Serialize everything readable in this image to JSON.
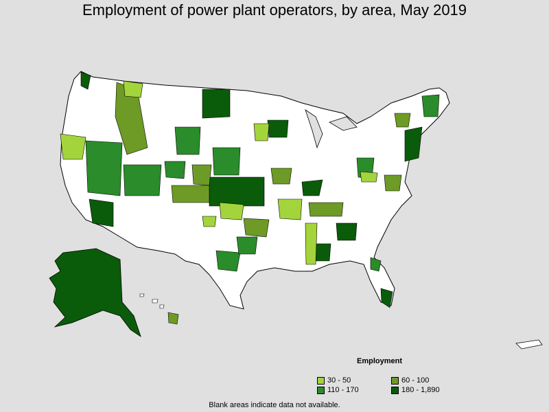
{
  "title": "Employment of power plant operators, by area, May 2019",
  "legend": {
    "title": "Employment",
    "items": [
      {
        "label": "30 - 50",
        "color": "#a4d43c"
      },
      {
        "label": "60 - 100",
        "color": "#6e9a26"
      },
      {
        "label": "110 - 170",
        "color": "#2a8c2a"
      },
      {
        "label": "180 - 1,890",
        "color": "#0a5c0a"
      }
    ]
  },
  "footnote": "Blank areas indicate data not available.",
  "colors": {
    "background": "#e0e0e0",
    "blank": "#ffffff",
    "border": "#000000"
  }
}
